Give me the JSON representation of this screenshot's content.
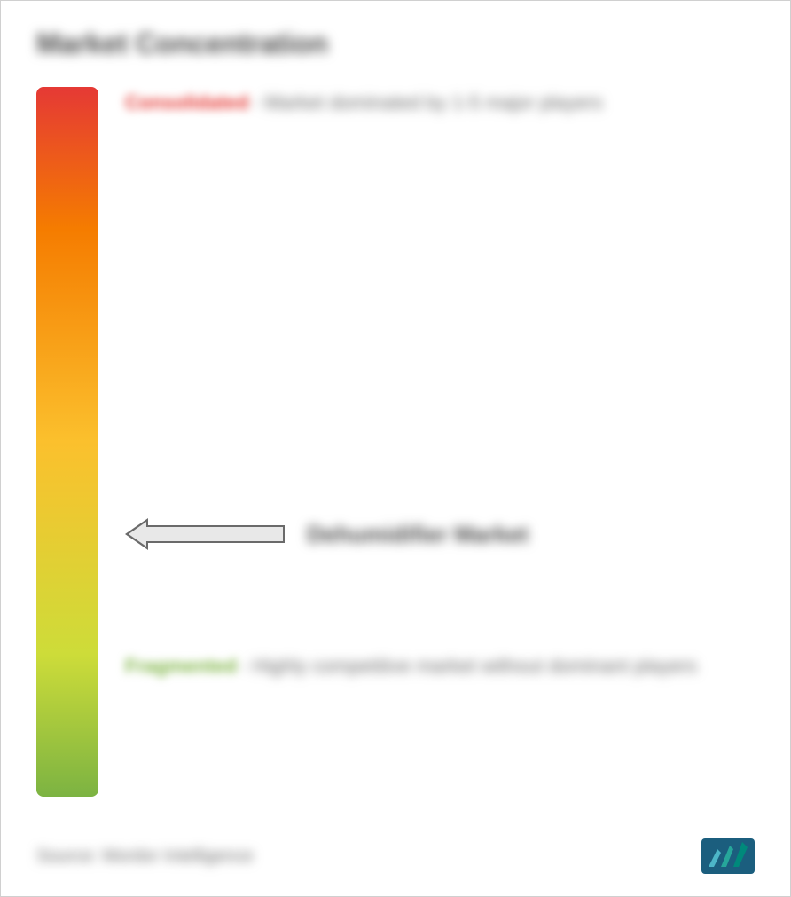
{
  "title": "Market Concentration",
  "gradient": {
    "colors": [
      "#e53935",
      "#f57c00",
      "#fbc02d",
      "#cddc39",
      "#7cb342"
    ],
    "stops": [
      0,
      20,
      50,
      80,
      100
    ]
  },
  "consolidated": {
    "label": "Consolidated",
    "color": "#e53935",
    "description": "- Market dominated by 1-5 major players"
  },
  "market_pointer": {
    "label": "Dehumidifier Market",
    "position_percent": 63,
    "arrow_color": "#6a6a6a",
    "arrow_fill": "#e8e8e8"
  },
  "fragmented": {
    "label": "Fragmented",
    "color": "#7cb342",
    "description": "- Highly competitive market without dominant players"
  },
  "footer": {
    "source": "Source: Mordor Intelligence"
  },
  "logo": {
    "bg_color": "#1b5e7e",
    "bar_colors": [
      "#4db6c8",
      "#26a69a",
      "#00897b"
    ]
  },
  "styling": {
    "background": "#ffffff",
    "border_color": "#d0d0d0",
    "title_color": "#4a4a4a",
    "text_color": "#6a6a6a",
    "title_fontsize": 32,
    "label_fontsize": 22,
    "pointer_fontsize": 26
  }
}
